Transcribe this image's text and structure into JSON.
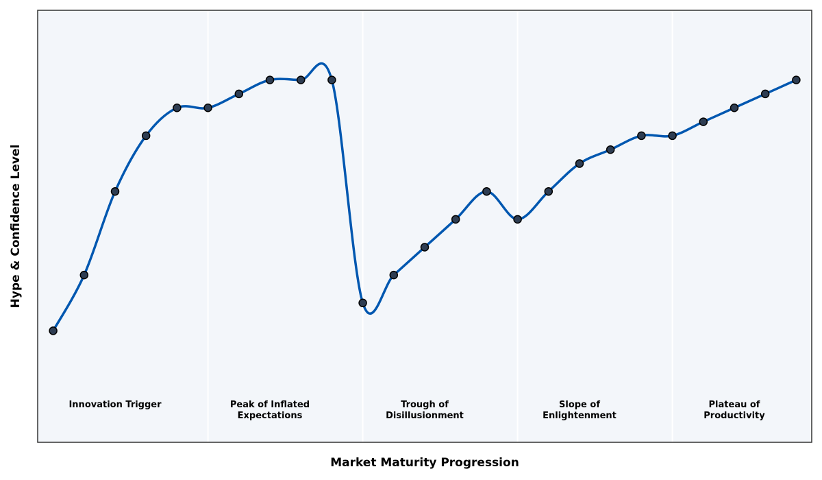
{
  "chart_data": {
    "type": "line",
    "x_label": "Market Maturity Progression",
    "y_label": "Hype & Confidence Level",
    "x": [
      0,
      1,
      2,
      3,
      4,
      5,
      6,
      7,
      8,
      9,
      10,
      11,
      12,
      13,
      14,
      15,
      16,
      17,
      18,
      19,
      20,
      21,
      22,
      23,
      24
    ],
    "series": [
      {
        "color": "#0057b0",
        "marker_color": "#2e3d52",
        "values": [
          20,
          40,
          70,
          90,
          100,
          100,
          105,
          110,
          110,
          110,
          30,
          40,
          50,
          60,
          70,
          60,
          70,
          80,
          85,
          90,
          90,
          95,
          100,
          105,
          110
        ]
      }
    ],
    "phases": [
      "Innovation Trigger",
      "Peak of Inflated Expectations",
      "Trough of Disillusionment",
      "Slope of Enlightenment",
      "Plateau of Productivity"
    ],
    "phase_dividers": [
      5,
      10,
      15,
      20
    ],
    "xlim": [
      -0.5,
      24.5
    ],
    "ylim": [
      -20,
      135
    ],
    "background": "#f3f6fa"
  }
}
